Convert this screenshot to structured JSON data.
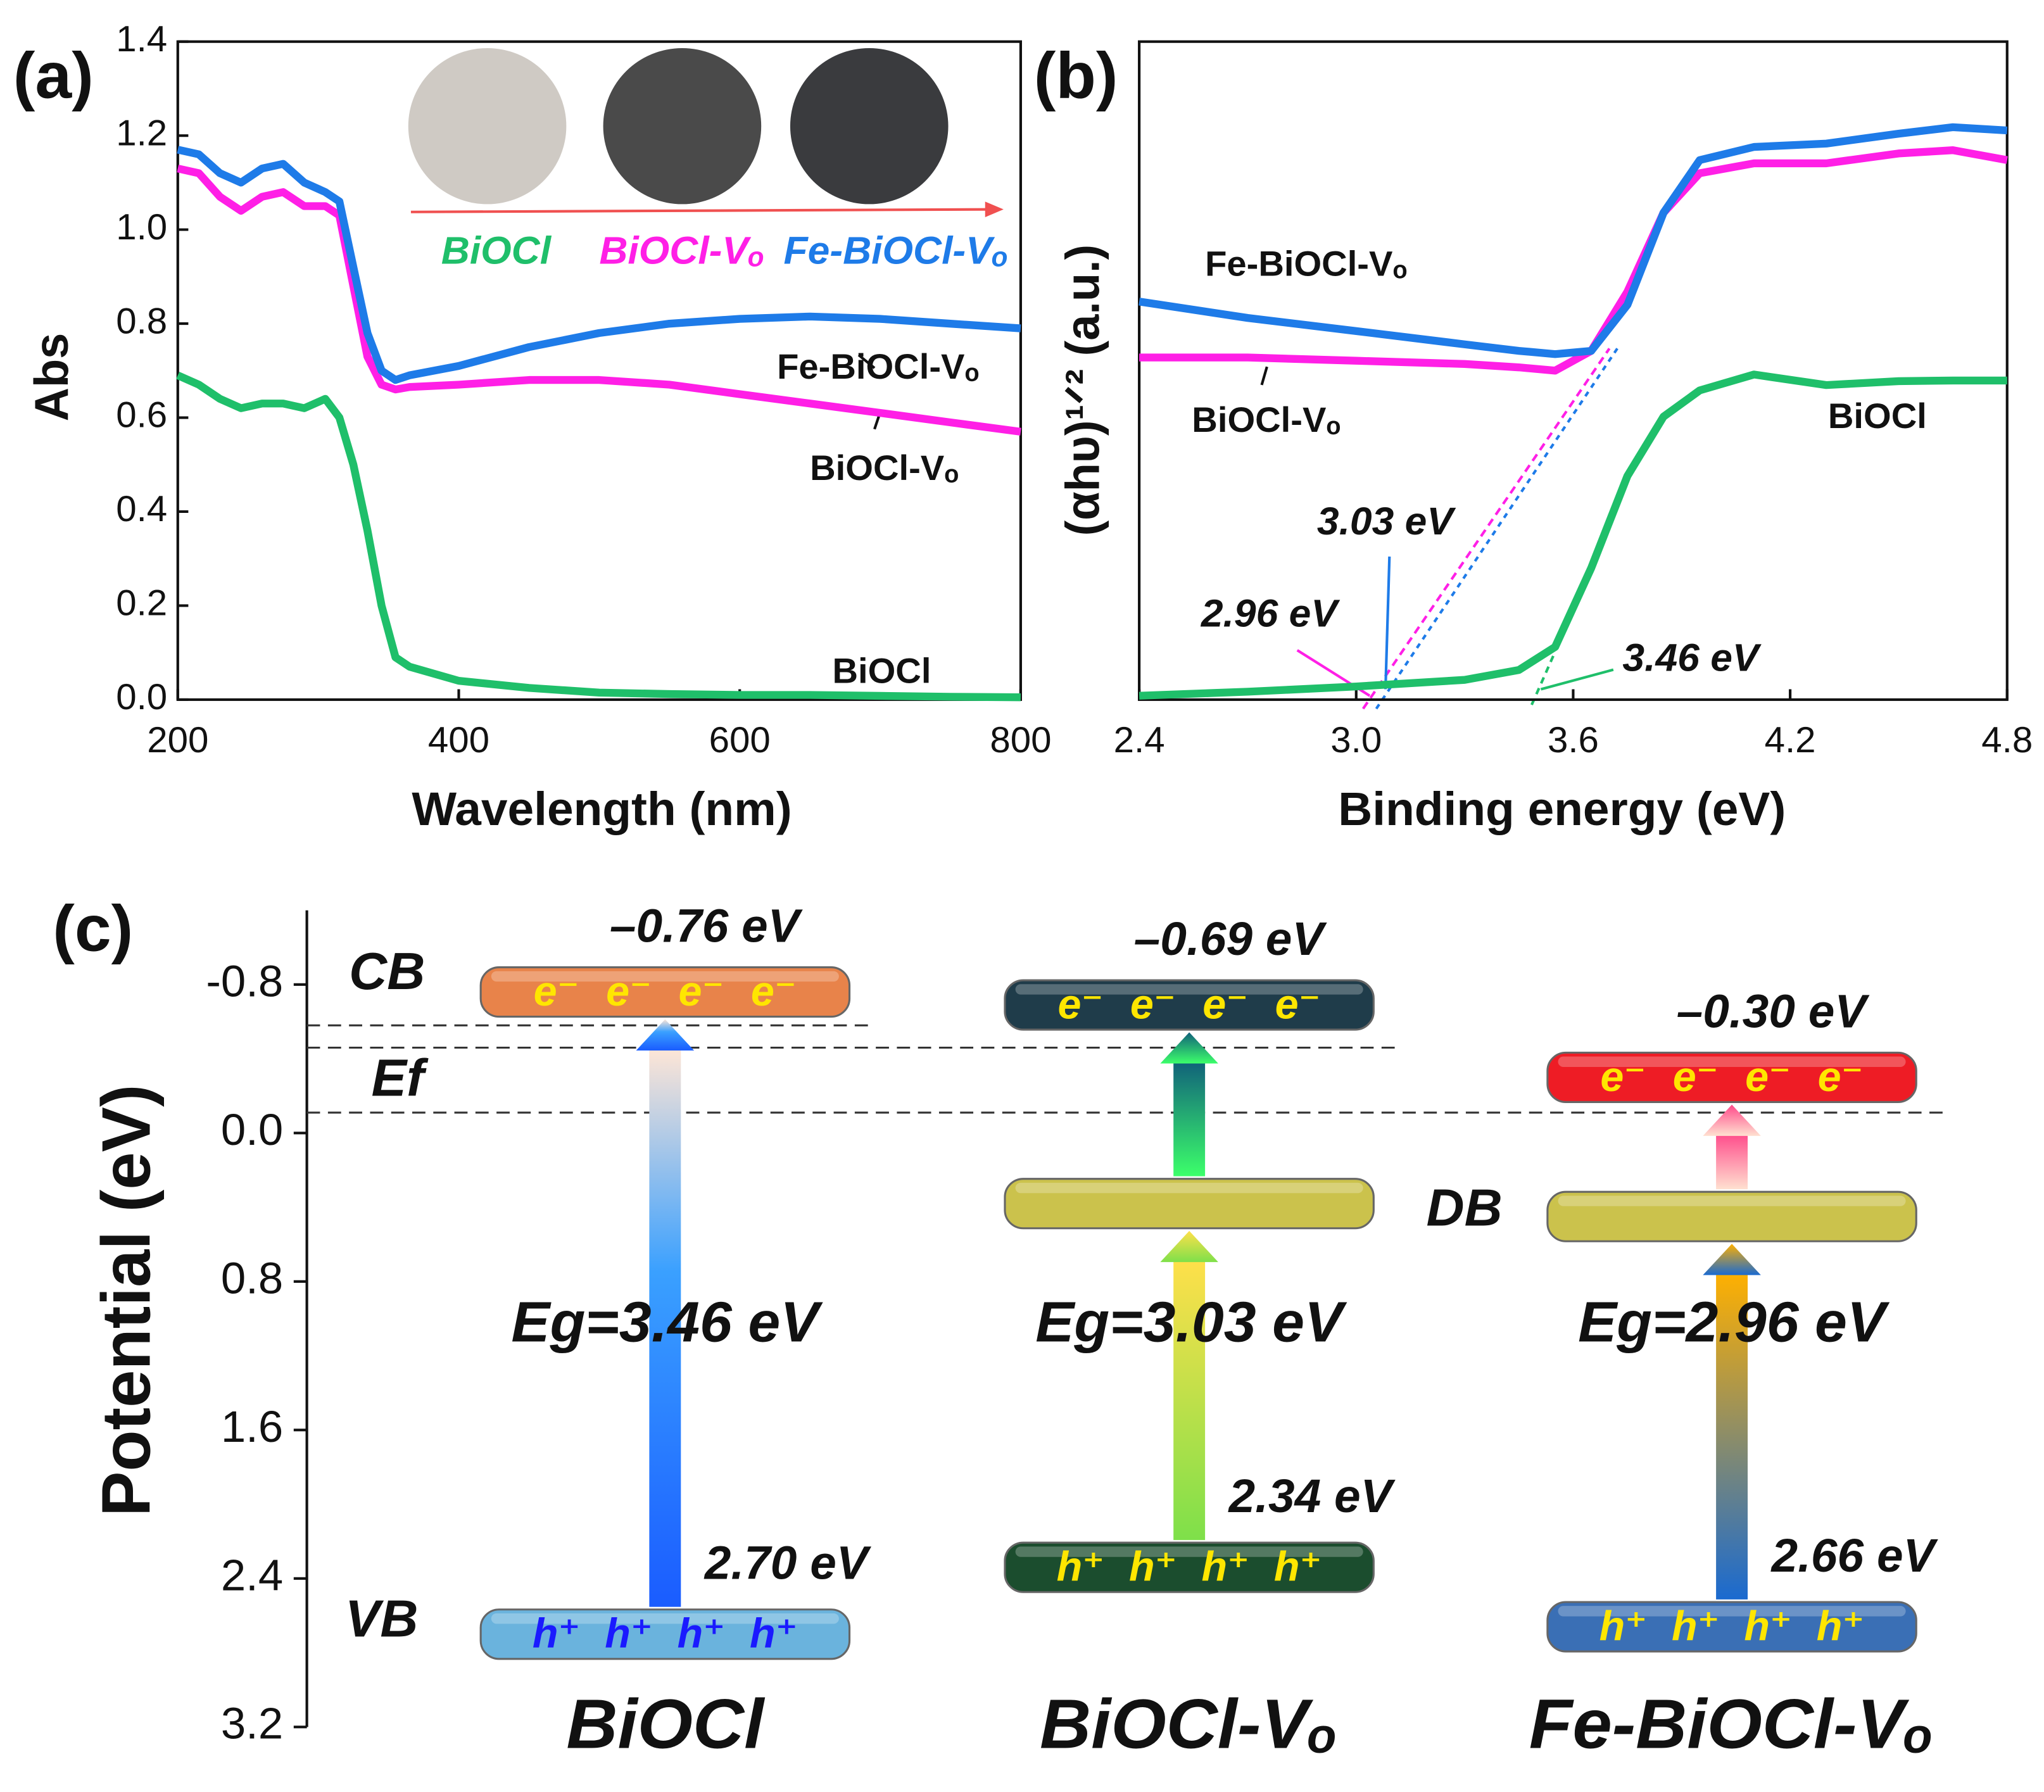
{
  "chart_data": [
    {
      "type": "line",
      "panel": "(a)",
      "xlabel": "Wavelength (nm)",
      "ylabel": "Abs",
      "x": [
        200,
        215,
        230,
        245,
        260,
        275,
        290,
        305,
        315,
        325,
        335,
        345,
        355,
        365,
        400,
        450,
        500,
        550,
        600,
        650,
        700,
        750,
        800
      ],
      "series": [
        {
          "name": "BiOCl",
          "color": "#1fbf6a",
          "values": [
            0.69,
            0.67,
            0.64,
            0.62,
            0.63,
            0.63,
            0.62,
            0.64,
            0.6,
            0.5,
            0.36,
            0.2,
            0.09,
            0.07,
            0.04,
            0.025,
            0.015,
            0.012,
            0.01,
            0.01,
            0.008,
            0.006,
            0.005
          ]
        },
        {
          "name": "BiOCl-Vₒ",
          "color": "#ff1fe6",
          "values": [
            1.13,
            1.12,
            1.07,
            1.04,
            1.07,
            1.08,
            1.05,
            1.05,
            1.03,
            0.88,
            0.73,
            0.67,
            0.66,
            0.665,
            0.67,
            0.68,
            0.68,
            0.67,
            0.65,
            0.63,
            0.61,
            0.59,
            0.57
          ]
        },
        {
          "name": "Fe-BiOCl-Vₒ",
          "color": "#1e7be8",
          "values": [
            1.17,
            1.16,
            1.12,
            1.1,
            1.13,
            1.14,
            1.1,
            1.08,
            1.06,
            0.92,
            0.78,
            0.7,
            0.68,
            0.69,
            0.71,
            0.75,
            0.78,
            0.8,
            0.81,
            0.815,
            0.81,
            0.8,
            0.79
          ]
        }
      ],
      "xlim": [
        200,
        800
      ],
      "xticks": [
        200,
        400,
        600,
        800
      ],
      "ylim": [
        0,
        1.4
      ],
      "yticks": [
        {
          "value": 0,
          "label": "0.0"
        },
        0.2,
        0.4,
        0.6,
        0.8,
        {
          "value": 1,
          "label": "1.0"
        },
        1.2,
        1.4
      ]
    },
    {
      "type": "line",
      "panel": "(b)",
      "xlabel": "Binding energy (eV)",
      "ylabel": "(αhυ)¹ᐟ² (a.u.)",
      "x": [
        2.4,
        2.7,
        3.0,
        3.3,
        3.45,
        3.55,
        3.65,
        3.75,
        3.85,
        3.95,
        4.1,
        4.3,
        4.5,
        4.65,
        4.8
      ],
      "series": [
        {
          "name": "BiOCl",
          "color": "#1fbf6a",
          "values": [
            0.006,
            0.012,
            0.02,
            0.03,
            0.045,
            0.08,
            0.2,
            0.34,
            0.43,
            0.47,
            0.494,
            0.478,
            0.484,
            0.485,
            0.485
          ]
        },
        {
          "name": "BiOCl-Vₒ",
          "color": "#ff1fe6",
          "values": [
            0.52,
            0.52,
            0.515,
            0.51,
            0.505,
            0.5,
            0.53,
            0.62,
            0.74,
            0.8,
            0.815,
            0.815,
            0.83,
            0.835,
            0.82
          ]
        },
        {
          "name": "Fe-BiOCl-Vₒ",
          "color": "#1e7be8",
          "values": [
            0.605,
            0.58,
            0.56,
            0.54,
            0.53,
            0.525,
            0.53,
            0.6,
            0.74,
            0.82,
            0.84,
            0.845,
            0.86,
            0.87,
            0.865
          ]
        }
      ],
      "annotations": [
        "3.03 eV",
        "2.96 eV",
        "3.46 eV"
      ],
      "xlim": [
        2.4,
        4.8
      ],
      "xticks": [
        2.4,
        {
          "value": 3,
          "label": "3.0"
        },
        3.6,
        4.2,
        4.8
      ],
      "ylim": [
        0,
        1
      ]
    },
    {
      "type": "band_diagram",
      "panel": "(c)",
      "ylabel": "Potential (eV)",
      "categories": [
        "BiOCl",
        "BiOCl-Vₒ",
        "Fe-BiOCl-Vₒ"
      ],
      "cb": {
        "values": [
          -0.76,
          -0.69,
          -0.3
        ],
        "value_labels": [
          "–0.76 eV",
          "–0.69 eV",
          "–0.30 eV"
        ],
        "colors": [
          "#e8834a",
          "#1f3c4a",
          "#ee1c25"
        ]
      },
      "vb": {
        "values": [
          2.7,
          2.34,
          2.66
        ],
        "value_labels": [
          "2.70 eV",
          "2.34 eV",
          "2.66 eV"
        ],
        "colors": [
          "#6ab3dd",
          "#1b4d2e",
          "#3a6fb5"
        ]
      },
      "db": {
        "values": [
          null,
          0.38,
          0.45
        ],
        "color": "#cbc24c"
      },
      "bandgap": {
        "values": [
          3.46,
          3.03,
          2.96
        ],
        "value_labels": [
          "Eg=3.46 eV",
          "Eg=3.03 eV",
          "Eg=2.96 eV"
        ]
      },
      "fermi_levels": [
        -0.58,
        -0.46,
        -0.11
      ],
      "labels": {
        "cb": "CB",
        "vb": "VB",
        "ef": "Ef",
        "db": "DB"
      },
      "electron": "e⁻",
      "hole": "h⁺",
      "ylim": [
        -1.2,
        3.2
      ],
      "yticks": [
        -0.8,
        {
          "value": 0,
          "label": "0.0"
        },
        0.8,
        1.6,
        2.4,
        3.2
      ]
    }
  ]
}
